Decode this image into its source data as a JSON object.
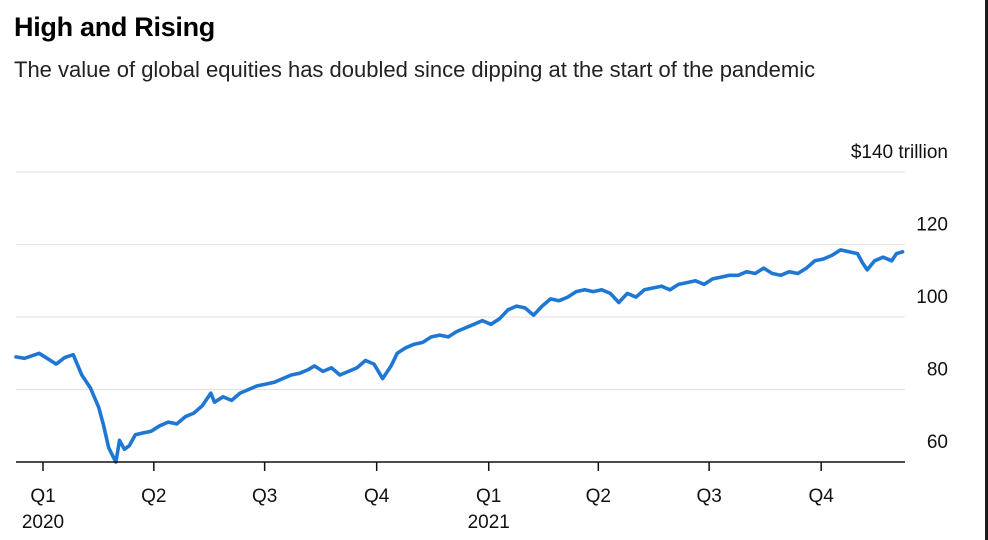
{
  "title": "High and Rising",
  "subtitle": "The value of global equities has doubled since dipping at the start of the pandemic",
  "colors": {
    "line": "#1f77d4",
    "grid": "#e2e2e2",
    "axis": "#111111",
    "text": "#111111"
  },
  "chart_data": {
    "type": "line",
    "title": "High and Rising",
    "subtitle": "The value of global equities has doubled since dipping at the start of the pandemic",
    "xlabel": "",
    "ylabel": "",
    "y_unit_label": "$140 trillion",
    "ylim": [
      60,
      140
    ],
    "y_ticks": [
      60,
      80,
      100,
      120,
      140
    ],
    "y_tick_labels": [
      "60",
      "80",
      "100",
      "120",
      "$140 trillion"
    ],
    "xlim": [
      "2020-01-01",
      "2021-12-31"
    ],
    "x_ticks": [
      "2020-01-01",
      "2020-04-01",
      "2020-07-01",
      "2020-10-01",
      "2021-01-01",
      "2021-04-01",
      "2021-07-01",
      "2021-10-01"
    ],
    "x_tick_labels": [
      "Q1",
      "Q2",
      "Q3",
      "Q4",
      "Q1",
      "Q2",
      "Q3",
      "Q4"
    ],
    "x_year_labels": [
      {
        "date": "2020-01-01",
        "label": "2020"
      },
      {
        "date": "2021-01-01",
        "label": "2021"
      }
    ],
    "grid": true,
    "legend": "none",
    "series": [
      {
        "values": [
          [
            "2020-01-01",
            89.0
          ],
          [
            "2020-01-08",
            88.6
          ],
          [
            "2020-01-15",
            89.4
          ],
          [
            "2020-01-20",
            90.0
          ],
          [
            "2020-01-27",
            88.5
          ],
          [
            "2020-02-03",
            87.0
          ],
          [
            "2020-02-10",
            88.8
          ],
          [
            "2020-02-17",
            89.6
          ],
          [
            "2020-02-24",
            84.0
          ],
          [
            "2020-03-02",
            80.5
          ],
          [
            "2020-03-09",
            75.0
          ],
          [
            "2020-03-13",
            70.0
          ],
          [
            "2020-03-17",
            64.0
          ],
          [
            "2020-03-20",
            62.0
          ],
          [
            "2020-03-23",
            60.0
          ],
          [
            "2020-03-26",
            66.0
          ],
          [
            "2020-03-30",
            63.5
          ],
          [
            "2020-04-03",
            64.5
          ],
          [
            "2020-04-08",
            67.5
          ],
          [
            "2020-04-14",
            68.0
          ],
          [
            "2020-04-21",
            68.5
          ],
          [
            "2020-04-28",
            70.0
          ],
          [
            "2020-05-05",
            71.0
          ],
          [
            "2020-05-12",
            70.5
          ],
          [
            "2020-05-19",
            72.5
          ],
          [
            "2020-05-26",
            73.5
          ],
          [
            "2020-06-02",
            75.5
          ],
          [
            "2020-06-09",
            79.0
          ],
          [
            "2020-06-12",
            76.5
          ],
          [
            "2020-06-19",
            78.0
          ],
          [
            "2020-06-26",
            77.0
          ],
          [
            "2020-07-03",
            79.0
          ],
          [
            "2020-07-10",
            80.0
          ],
          [
            "2020-07-17",
            81.0
          ],
          [
            "2020-07-24",
            81.5
          ],
          [
            "2020-07-31",
            82.0
          ],
          [
            "2020-08-07",
            83.0
          ],
          [
            "2020-08-14",
            84.0
          ],
          [
            "2020-08-21",
            84.5
          ],
          [
            "2020-08-28",
            85.5
          ],
          [
            "2020-09-02",
            86.5
          ],
          [
            "2020-09-09",
            85.0
          ],
          [
            "2020-09-16",
            86.0
          ],
          [
            "2020-09-23",
            84.0
          ],
          [
            "2020-09-30",
            85.0
          ],
          [
            "2020-10-07",
            86.0
          ],
          [
            "2020-10-14",
            88.0
          ],
          [
            "2020-10-21",
            87.0
          ],
          [
            "2020-10-28",
            83.0
          ],
          [
            "2020-11-04",
            86.5
          ],
          [
            "2020-11-09",
            90.0
          ],
          [
            "2020-11-16",
            91.5
          ],
          [
            "2020-11-23",
            92.5
          ],
          [
            "2020-11-30",
            93.0
          ],
          [
            "2020-12-07",
            94.5
          ],
          [
            "2020-12-14",
            95.0
          ],
          [
            "2020-12-21",
            94.5
          ],
          [
            "2020-12-28",
            96.0
          ],
          [
            "2021-01-04",
            97.0
          ],
          [
            "2021-01-11",
            98.0
          ],
          [
            "2021-01-18",
            99.0
          ],
          [
            "2021-01-25",
            98.0
          ],
          [
            "2021-02-01",
            99.5
          ],
          [
            "2021-02-08",
            102.0
          ],
          [
            "2021-02-15",
            103.0
          ],
          [
            "2021-02-22",
            102.5
          ],
          [
            "2021-03-01",
            100.5
          ],
          [
            "2021-03-08",
            103.0
          ],
          [
            "2021-03-15",
            105.0
          ],
          [
            "2021-03-22",
            104.5
          ],
          [
            "2021-03-29",
            105.5
          ],
          [
            "2021-04-05",
            107.0
          ],
          [
            "2021-04-12",
            107.5
          ],
          [
            "2021-04-19",
            107.0
          ],
          [
            "2021-04-26",
            107.5
          ],
          [
            "2021-05-03",
            106.5
          ],
          [
            "2021-05-10",
            104.0
          ],
          [
            "2021-05-17",
            106.5
          ],
          [
            "2021-05-24",
            105.5
          ],
          [
            "2021-05-31",
            107.5
          ],
          [
            "2021-06-07",
            108.0
          ],
          [
            "2021-06-14",
            108.5
          ],
          [
            "2021-06-21",
            107.5
          ],
          [
            "2021-06-28",
            109.0
          ],
          [
            "2021-07-05",
            109.5
          ],
          [
            "2021-07-12",
            110.0
          ],
          [
            "2021-07-19",
            109.0
          ],
          [
            "2021-07-26",
            110.5
          ],
          [
            "2021-08-02",
            111.0
          ],
          [
            "2021-08-09",
            111.5
          ],
          [
            "2021-08-16",
            111.5
          ],
          [
            "2021-08-23",
            112.5
          ],
          [
            "2021-08-30",
            112.0
          ],
          [
            "2021-09-06",
            113.5
          ],
          [
            "2021-09-13",
            112.0
          ],
          [
            "2021-09-20",
            111.5
          ],
          [
            "2021-09-27",
            112.5
          ],
          [
            "2021-10-04",
            112.0
          ],
          [
            "2021-10-11",
            113.5
          ],
          [
            "2021-10-18",
            115.5
          ],
          [
            "2021-10-25",
            116.0
          ],
          [
            "2021-11-01",
            117.0
          ],
          [
            "2021-11-08",
            118.5
          ],
          [
            "2021-11-15",
            118.0
          ],
          [
            "2021-11-22",
            117.5
          ],
          [
            "2021-11-26",
            115.0
          ],
          [
            "2021-11-30",
            113.0
          ],
          [
            "2021-12-06",
            115.5
          ],
          [
            "2021-12-13",
            116.5
          ],
          [
            "2021-12-20",
            115.5
          ],
          [
            "2021-12-24",
            117.5
          ],
          [
            "2021-12-29",
            118.0
          ]
        ]
      }
    ]
  }
}
